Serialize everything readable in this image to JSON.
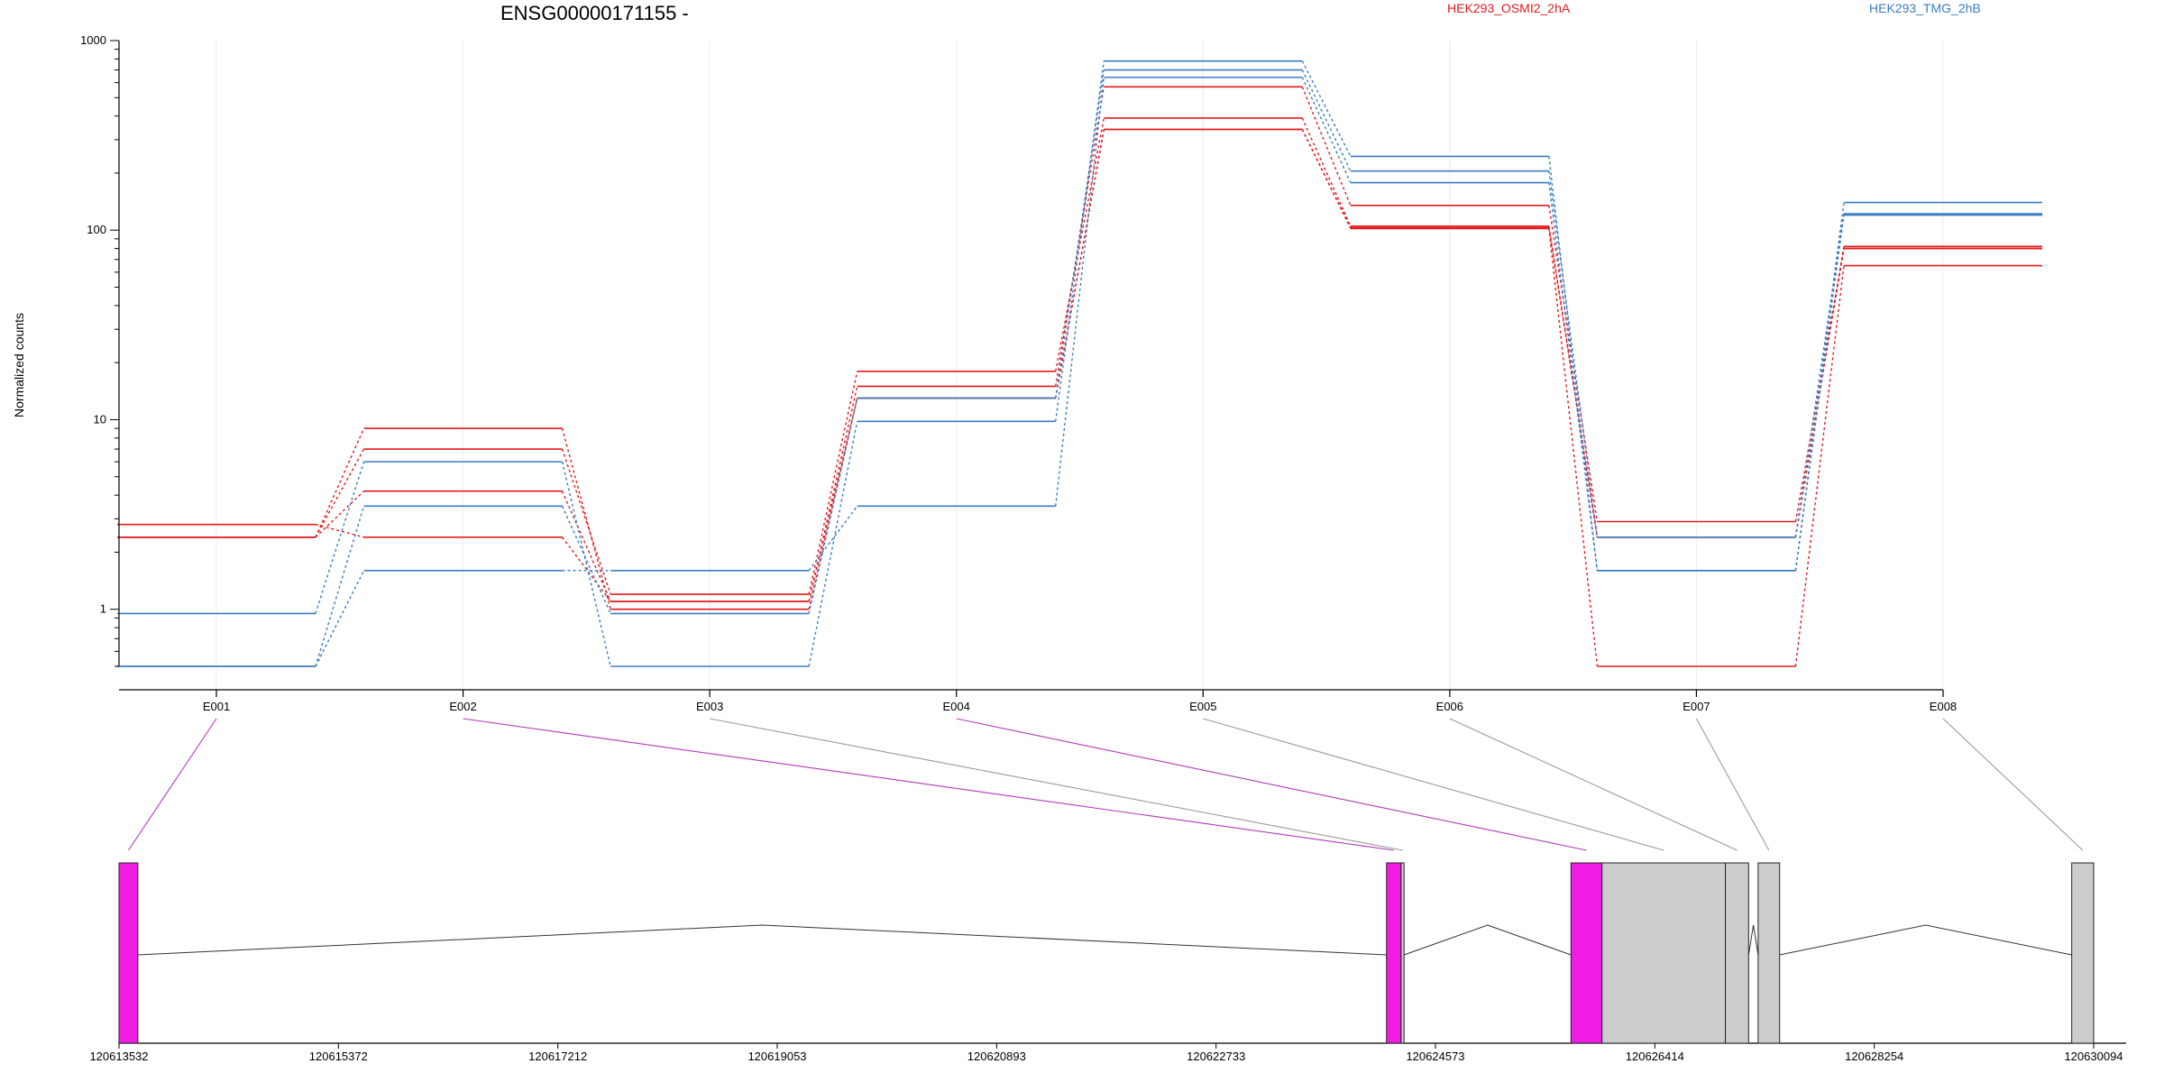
{
  "chart_data": {
    "type": "line",
    "title": "ENSG00000171155 -",
    "ylabel": "Normalized counts",
    "yscale": "log",
    "ylim": [
      0.5,
      1000
    ],
    "y_ticks": [
      1,
      10,
      100,
      1000
    ],
    "y_tick_labels": [
      "1",
      "10",
      "100",
      "1000"
    ],
    "categories": [
      "E001",
      "E002",
      "E003",
      "E004",
      "E005",
      "E006",
      "E007",
      "E008"
    ],
    "legend": [
      {
        "name": "HEK293_OSMI2_2hA",
        "color": "#e31a1c"
      },
      {
        "name": "HEK293_TMG_2hB",
        "color": "#3a7dc4"
      }
    ],
    "series": [
      {
        "group": "HEK293_OSMI2_2hA",
        "color": "#e31a1c",
        "values": [
          2.8,
          2.4,
          1.1,
          15.0,
          570,
          135,
          2.9,
          80
        ]
      },
      {
        "group": "HEK293_OSMI2_2hA",
        "color": "#e31a1c",
        "values": [
          2.4,
          7.0,
          1.2,
          18.0,
          390,
          105,
          2.4,
          82
        ]
      },
      {
        "group": "HEK293_OSMI2_2hA",
        "color": "#e31a1c",
        "values": [
          2.4,
          9.0,
          1.0,
          13.0,
          340,
          102,
          0.5,
          65
        ]
      },
      {
        "group": "HEK293_OSMI2_2hA",
        "color": "#e31a1c",
        "values": [
          2.4,
          4.2,
          1.1,
          13.0,
          340,
          103,
          2.4,
          80
        ]
      },
      {
        "group": "HEK293_TMG_2hB",
        "color": "#3a7dc4",
        "values": [
          0.95,
          6.0,
          0.5,
          9.8,
          780,
          245,
          1.6,
          140
        ]
      },
      {
        "group": "HEK293_TMG_2hB",
        "color": "#3a7dc4",
        "values": [
          0.5,
          3.5,
          0.95,
          13.0,
          700,
          205,
          2.4,
          122
        ]
      },
      {
        "group": "HEK293_TMG_2hB",
        "color": "#3a7dc4",
        "values": [
          0.5,
          1.6,
          1.6,
          3.5,
          640,
          178,
          1.6,
          120
        ]
      }
    ],
    "gene_model": {
      "coordinate_labels": [
        "120613532",
        "120615372",
        "120617212",
        "120619053",
        "120620893",
        "120622733",
        "120624573",
        "120626414",
        "120628254",
        "120630094"
      ],
      "genomic_range": [
        120613532,
        120630094
      ],
      "exon_fill_colors": {
        "highlighted": "#f01ee4",
        "normal": "#cccccc"
      },
      "exons": [
        {
          "name": "E001",
          "start": 120613532,
          "end": 120613690,
          "highlighted": true
        },
        {
          "name": "E002",
          "start": 120624163,
          "end": 120624285,
          "highlighted": true
        },
        {
          "name": "E003",
          "start": 120624285,
          "end": 120624310,
          "highlighted": false
        },
        {
          "name": "E004",
          "start": 120625710,
          "end": 120625970,
          "highlighted": true
        },
        {
          "name": "E005",
          "start": 120625970,
          "end": 120627005,
          "highlighted": false
        },
        {
          "name": "E006",
          "start": 120627005,
          "end": 120627200,
          "highlighted": false
        },
        {
          "name": "E007",
          "start": 120627280,
          "end": 120627460,
          "highlighted": false
        },
        {
          "name": "E008",
          "start": 120629910,
          "end": 120630094,
          "highlighted": false
        }
      ]
    }
  }
}
